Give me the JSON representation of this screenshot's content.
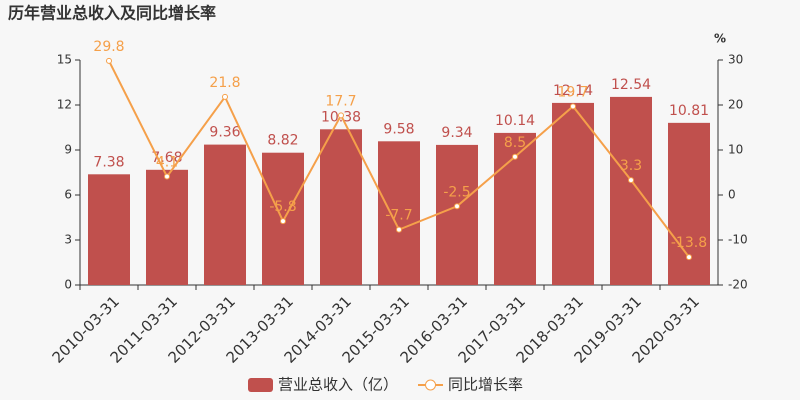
{
  "chart_data": {
    "type": "bar",
    "title": "历年营业总收入及同比增长率",
    "y2_unit": "%",
    "categories": [
      "2010-03-31",
      "2011-03-31",
      "2012-03-31",
      "2013-03-31",
      "2014-03-31",
      "2015-03-31",
      "2016-03-31",
      "2017-03-31",
      "2018-03-31",
      "2019-03-31",
      "2020-03-31"
    ],
    "series": [
      {
        "name": "营业总收入（亿）",
        "type": "bar",
        "color": "#c0504d",
        "values": [
          7.38,
          7.68,
          9.36,
          8.82,
          10.38,
          9.58,
          9.34,
          10.14,
          12.14,
          12.54,
          10.81
        ]
      },
      {
        "name": "同比增长率",
        "type": "line",
        "axis": "y2",
        "color": "#f5a04a",
        "values": [
          29.8,
          4.1,
          21.8,
          -5.8,
          17.7,
          -7.7,
          -2.5,
          8.5,
          19.7,
          3.3,
          -13.8
        ]
      }
    ],
    "ylim": [
      0,
      15
    ],
    "yticks": [
      0,
      3,
      6,
      9,
      12,
      15
    ],
    "y2lim": [
      -20,
      30
    ],
    "y2ticks": [
      -20,
      -10,
      0,
      10,
      20,
      30
    ]
  }
}
